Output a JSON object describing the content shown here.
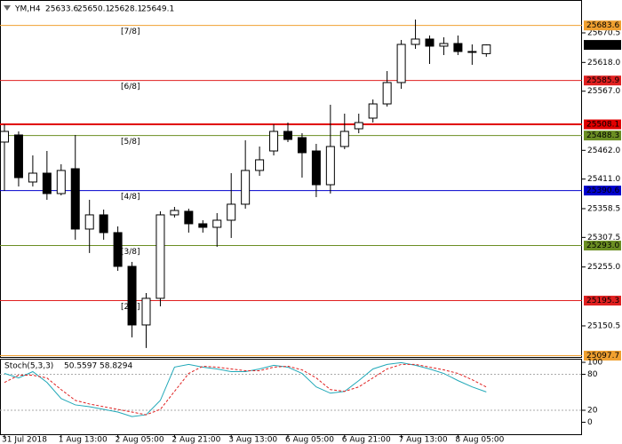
{
  "chart_data": [
    {
      "type": "candlestick",
      "title": "YM,H4",
      "categories": [
        "31 Jul 2018",
        null,
        null,
        null,
        "1 Aug 13:00",
        null,
        null,
        null,
        "2 Aug 05:00",
        null,
        null,
        null,
        "2 Aug 21:00",
        null,
        null,
        null,
        "3 Aug 13:00",
        null,
        null,
        null,
        "6 Aug 05:00",
        null,
        null,
        null,
        "6 Aug 21:00",
        null,
        null,
        null,
        "7 Aug 13:00",
        null,
        null,
        null,
        "8 Aug 05:00",
        null,
        null
      ],
      "open": [
        25476.7,
        25489.3,
        25405.8,
        25421.5,
        25385.3,
        25429.4,
        25322.3,
        25347.5,
        25316.0,
        25256.1,
        25152.1,
        25199.4,
        25347.5,
        25353.8,
        25331.7,
        25325.4,
        25338.0,
        25366.4,
        25426.3,
        25460.9,
        25495.6,
        25484.6,
        25460.9,
        25401.0,
        25468.8,
        25500.3,
        25519.2,
        25544.4,
        25582.3,
        25650.0,
        25659.5,
        25646.9,
        25651.6,
        25637.4,
        25633.6
      ],
      "high": [
        25508.2,
        25495.6,
        25453.0,
        25460.9,
        25437.3,
        25489.3,
        25374.2,
        25356.9,
        25327.0,
        25264.0,
        25208.8,
        25353.8,
        25361.6,
        25358.5,
        25338.0,
        25350.6,
        25421.5,
        25479.8,
        25468.8,
        25508.2,
        25511.3,
        25492.4,
        25473.5,
        25542.9,
        25527.1,
        25527.1,
        25552.3,
        25602.7,
        25657.9,
        25694.1,
        25665.8,
        25662.6,
        25665.8,
        25650.0,
        25650.1
      ],
      "low": [
        25390.0,
        25397.9,
        25397.9,
        25374.2,
        25382.1,
        25303.4,
        25279.8,
        25303.4,
        25248.2,
        25130.1,
        25111.2,
        25185.2,
        25342.8,
        25316.0,
        25316.0,
        25290.8,
        25306.5,
        25358.5,
        25416.8,
        25453.0,
        25476.7,
        25413.6,
        25379.0,
        25385.3,
        25464.1,
        25492.4,
        25511.3,
        25539.7,
        25571.2,
        25642.1,
        25615.3,
        25631.1,
        25631.1,
        25613.8,
        25628.1
      ],
      "close": [
        25495.6,
        25413.6,
        25421.5,
        25385.3,
        25426.3,
        25322.3,
        25347.5,
        25316.0,
        25256.1,
        25152.1,
        25199.4,
        25347.5,
        25355.3,
        25331.7,
        25325.4,
        25338.0,
        25366.4,
        25426.3,
        25445.2,
        25495.6,
        25481.4,
        25457.8,
        25401.0,
        25468.8,
        25495.6,
        25511.3,
        25544.4,
        25582.3,
        25650.0,
        25659.5,
        25646.9,
        25651.6,
        25637.4,
        25636.0,
        25649.1
      ],
      "up_color": "#ffffff",
      "down_color": "#000000",
      "ylim": [
        25095.3,
        25728.8
      ],
      "yticks": [
        25670.5,
        {
          "value": 25618,
          "label": "25618.0"
        },
        {
          "value": 25567,
          "label": "25567.0"
        },
        {
          "value": 25462,
          "label": "25462.0"
        },
        {
          "value": 25411,
          "label": "25411.0"
        },
        25358.5,
        25307.5,
        {
          "value": 25255,
          "label": "25255.0"
        },
        25150.5
      ],
      "levels": [
        {
          "price": 25683.6,
          "label": "[7/8]",
          "color": "#f0a030"
        },
        {
          "price": 25585.9,
          "label": "[6/8]",
          "color": "#e02020"
        },
        {
          "price": 25508.1,
          "color": "#e00000",
          "width": 2
        },
        {
          "price": 25488.3,
          "label": "[5/8]",
          "color": "#6b8e23"
        },
        {
          "price": 25390.6,
          "label": "[4/8]",
          "color": "#0000cd"
        },
        {
          "price": {
            "value": 25293,
            "label": "25293.0"
          },
          "label": "[3/8]",
          "color": "#6b8e23"
        },
        {
          "price": 25195.3,
          "label": "[2/8]",
          "color": "#e02020"
        },
        {
          "price": 25097.7,
          "color": "#f0a030"
        }
      ]
    },
    {
      "type": "line",
      "title": "Stoch(5,3,3)",
      "series": [
        {
          "color": "#20a8b8",
          "dash": false,
          "values": [
            81.5,
            74,
            84.5,
            66.5,
            39.5,
            29,
            26,
            21.5,
            17,
            9.5,
            12.5,
            36.5,
            92,
            96.5,
            92,
            89,
            84.5,
            84.5,
            89,
            95,
            92,
            81.5,
            59,
            48.5,
            51.5,
            69.5,
            89,
            96.5,
            99.5,
            95,
            89,
            81.5,
            69.5,
            59,
            50.5597
          ]
        },
        {
          "color": "#e02020",
          "dash": true,
          "values": [
            66.5,
            78.5,
            78.5,
            74,
            54.5,
            36.5,
            30.5,
            26,
            21.5,
            17,
            12.5,
            21.5,
            51.5,
            81.5,
            93.5,
            92,
            89,
            86,
            86,
            92,
            93.5,
            87.5,
            74,
            54.5,
            51.5,
            59,
            74,
            89,
            96.5,
            96.5,
            92,
            87.5,
            81.5,
            71,
            58.8294
          ]
        }
      ],
      "ylim": [
        -20,
        106
      ],
      "yticks": [
        100,
        80,
        20,
        0
      ],
      "dotted_levels": [
        80,
        20
      ]
    }
  ]
}
